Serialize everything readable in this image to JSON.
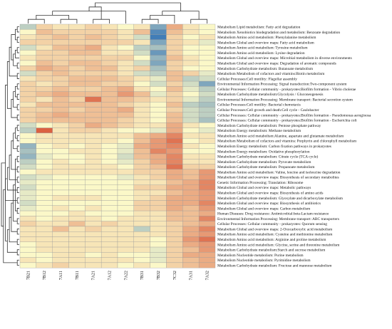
{
  "chart_data": {
    "type": "heatmap",
    "title": "",
    "xlabel": "",
    "ylabel": "",
    "legend": "none",
    "colors": {
      "low": "#2c6fb5",
      "mid": "#fbf8c8",
      "high": "#d33a1f"
    },
    "columns": [
      "7B21",
      "7B12",
      "7A11",
      "7B11",
      "7A21",
      "7A12",
      "7A22",
      "7B31",
      "7B32",
      "7C32",
      "7A31",
      "7A32"
    ],
    "rows": [
      "Metabolism Lipid metabolism: Fatty acid degradation",
      "Metabolism Xenobiotics biodegradation and metabolism: Benzoate degradation",
      "Metabolism Amino acid metabolism: Phenylalanine metabolism",
      "Metabolism Global and overview maps: Fatty acid metabolism",
      "Metabolism Amino acid metabolism: Tyrosine metabolism",
      "Metabolism Amino acid metabolism: Lysine degradation",
      "Metabolism Global and overview maps: Microbial metabolism in diverse environments",
      "Metabolism Global and overview maps: Degradation of aromatic compounds",
      "Metabolism Carbohydrate metabolism: Butanoate metabolism",
      "Metabolism Metabolism of cofactors and vitamins:Biotin metabolism",
      "Cellular Processes:Cell motility: Flagellar assembly",
      "Environmental Information Processing: Signal transduction:Two-component system",
      "Cellular Processes: Cellular community - prokaryotes:Biofilm formation - Vibrio cholerae",
      "Metabolism Carbohydrate metabolism:Glycolysis / Gluconeogenesis",
      "Environmental Information Processing: Membrane transport: Bacterial secretion system",
      "Cellular Processes:Cell motility: Bacterial chemotaxis",
      "Cellular Processes:Cell growth and death:Cell cycle - Caulobacter",
      "Cellular Processes: Cellular community - prokaryotes:Biofilm formation - Pseudomonas aeruginosa",
      "Cellular Processes: Cellular community - prokaryotes:Biofilm formation - Escherichia coli",
      "Metabolism Carbohydrate metabolism: Pentose phosphate pathway",
      "Metabolism Energy metabolism: Methane metabolism",
      "Metabolism Amino acid metabolism:Alanine, aspartate and glutamate metabolism",
      "Metabolism Metabolism of cofactors and vitamins: Porphyrin and chlorophyll metabolism",
      "Metabolism Energy metabolism: Carbon fixation pathways in prokaryotes",
      "Metabolism Energy metabolism: Oxidative phosphorylation",
      "Metabolism Carbohydrate metabolism: Citrate cycle (TCA cycle)",
      "Metabolism Carbohydrate metabolism: Pyruvate metabolism",
      "Metabolism Carbohydrate metabolism: Propanoate metabolism",
      "Metabolism Amino acid metabolism: Valine, leucine and isoleucine degradation",
      "Metabolism Global and overview maps: Biosynthesis of secondary metabolites",
      "Genetic Information Processing: Translation: Ribosome",
      "Metabolism Global and overview maps: Metabolic pathways",
      "Metabolism Global and overview maps: Biosynthesis of amino acids",
      "Metabolism Carbohydrate metabolism: Glyoxylate and dicarboxylate metabolism",
      "Metabolism Global and overview maps: Biosynthesis of antibiotics",
      "Metabolism Global and overview maps: Carbon metabolism",
      "Human Diseases: Drug resistance: Antimicrobial:beta-Lactam resistance",
      "Environmental Information Processing: Membrane transport: ABC transporters",
      "Cellular Processes: Cellular community - prokaryotes: Quorum sensing",
      "Metabolism Global and overview maps: 2-Oxocarboxylic acid metabolism",
      "Metabolism Amino acid metabolism: Cysteine and methionine metabolism",
      "Metabolism Amino acid metabolism: Arginine and proline metabolism",
      "Metabolism Amino acid metabolism: Glycine, serine and threonine metabolism",
      "Metabolism Carbohydrate metabolism:Starch and sucrose metabolism",
      "Metabolism Nucleotide metabolism: Purine metabolism",
      "Metabolism Nucleotide metabolism: Pyrimidine metabolism",
      "Metabolism Carbohydrate metabolism: Fructose and mannose metabolism"
    ],
    "values": [
      [
        -0.3,
        0.2,
        0.1,
        0.1,
        0.2,
        0.1,
        0.0,
        0.1,
        -0.6,
        0.4,
        0.1,
        0.0
      ],
      [
        0.0,
        0.3,
        0.2,
        0.2,
        0.2,
        0.2,
        0.1,
        0.3,
        -0.8,
        0.3,
        0.1,
        0.0
      ],
      [
        0.1,
        0.2,
        0.3,
        0.2,
        0.3,
        0.2,
        0.1,
        -0.2,
        -0.9,
        0.2,
        0.0,
        0.1
      ],
      [
        0.2,
        0.2,
        0.2,
        0.2,
        0.2,
        0.2,
        0.2,
        0.1,
        -0.6,
        0.2,
        0.1,
        -0.1
      ],
      [
        -0.2,
        0.1,
        0.3,
        0.3,
        0.4,
        0.1,
        0.0,
        -0.3,
        -0.4,
        0.2,
        0.0,
        0.0
      ],
      [
        0.0,
        0.2,
        0.2,
        0.3,
        0.3,
        0.1,
        0.1,
        -0.2,
        -0.7,
        0.2,
        0.0,
        0.0
      ],
      [
        0.1,
        0.2,
        0.2,
        0.2,
        0.2,
        0.2,
        0.2,
        0.0,
        -0.5,
        0.3,
        0.1,
        0.0
      ],
      [
        0.0,
        0.3,
        0.2,
        0.3,
        0.3,
        0.2,
        0.1,
        -0.2,
        -0.6,
        0.2,
        0.1,
        0.0
      ],
      [
        0.2,
        0.4,
        0.3,
        0.2,
        0.3,
        0.3,
        0.1,
        0.2,
        -0.4,
        0.2,
        0.0,
        0.0
      ],
      [
        -0.2,
        0.2,
        0.3,
        0.2,
        0.2,
        0.2,
        0.1,
        -0.2,
        -0.3,
        0.3,
        0.2,
        -0.1
      ],
      [
        0.1,
        0.2,
        0.2,
        0.3,
        0.3,
        0.3,
        0.2,
        0.1,
        -0.1,
        0.3,
        -0.3,
        -0.2
      ],
      [
        0.2,
        0.1,
        0.2,
        0.3,
        0.3,
        0.2,
        0.2,
        0.0,
        -0.2,
        0.2,
        -0.2,
        -0.6
      ],
      [
        0.2,
        0.2,
        0.3,
        0.2,
        0.2,
        0.3,
        0.4,
        0.1,
        0.0,
        0.3,
        -0.1,
        -0.3
      ],
      [
        0.2,
        0.3,
        0.4,
        0.3,
        0.3,
        0.3,
        0.5,
        0.3,
        -0.1,
        0.2,
        0.0,
        -0.2
      ],
      [
        0.2,
        0.1,
        0.3,
        0.2,
        0.7,
        0.3,
        0.3,
        0.2,
        0.1,
        0.2,
        -0.1,
        -0.3
      ],
      [
        0.1,
        0.3,
        0.3,
        0.3,
        0.3,
        0.3,
        0.2,
        0.1,
        0.0,
        0.3,
        -0.3,
        -0.4
      ],
      [
        0.2,
        0.2,
        0.3,
        0.2,
        0.3,
        0.3,
        0.4,
        0.1,
        0.0,
        0.2,
        -0.2,
        -0.3
      ],
      [
        0.2,
        0.3,
        0.4,
        0.3,
        0.3,
        0.3,
        0.3,
        0.1,
        0.0,
        0.3,
        -0.2,
        -0.3
      ],
      [
        0.2,
        0.3,
        0.3,
        0.3,
        0.3,
        0.3,
        0.2,
        0.1,
        0.0,
        0.3,
        -0.2,
        -0.4
      ],
      [
        -0.2,
        0.0,
        0.1,
        0.2,
        0.4,
        0.3,
        0.2,
        0.1,
        0.1,
        0.4,
        0.1,
        0.0
      ],
      [
        -0.3,
        0.8,
        0.1,
        0.2,
        0.2,
        0.1,
        0.0,
        0.0,
        -0.1,
        0.4,
        0.0,
        -0.1
      ],
      [
        0.0,
        0.1,
        0.1,
        0.1,
        0.1,
        0.1,
        0.1,
        0.3,
        0.4,
        0.6,
        0.1,
        0.1
      ],
      [
        0.0,
        0.1,
        0.1,
        0.1,
        0.1,
        0.1,
        0.0,
        0.3,
        0.5,
        0.7,
        0.0,
        0.1
      ],
      [
        -0.5,
        0.0,
        0.1,
        0.0,
        0.1,
        0.0,
        -0.1,
        0.4,
        0.5,
        0.6,
        0.1,
        0.0
      ],
      [
        -0.4,
        0.0,
        0.0,
        0.1,
        0.1,
        0.0,
        -0.1,
        0.3,
        0.6,
        0.5,
        0.0,
        0.0
      ],
      [
        -0.5,
        -0.1,
        0.0,
        0.0,
        0.1,
        0.0,
        -0.2,
        0.3,
        0.4,
        0.6,
        0.1,
        0.1
      ],
      [
        -0.3,
        0.0,
        0.1,
        0.0,
        0.1,
        0.0,
        -0.1,
        0.2,
        0.4,
        0.6,
        0.1,
        0.1
      ],
      [
        -0.2,
        0.0,
        0.1,
        0.1,
        0.1,
        0.1,
        0.0,
        0.2,
        0.3,
        0.7,
        0.2,
        0.2
      ],
      [
        0.0,
        0.1,
        0.1,
        0.1,
        0.1,
        0.1,
        0.1,
        0.2,
        0.2,
        0.4,
        0.3,
        0.5
      ],
      [
        -0.2,
        -0.1,
        0.0,
        0.0,
        0.0,
        0.0,
        -0.1,
        0.1,
        0.2,
        0.4,
        0.3,
        0.5
      ],
      [
        -0.1,
        0.0,
        0.0,
        0.0,
        0.0,
        0.0,
        0.0,
        0.1,
        0.1,
        0.3,
        0.4,
        0.6
      ],
      [
        -0.2,
        0.0,
        0.0,
        0.0,
        0.0,
        0.0,
        0.0,
        0.2,
        0.2,
        0.4,
        0.4,
        0.6
      ],
      [
        -0.1,
        0.0,
        0.0,
        0.0,
        0.0,
        0.0,
        0.0,
        0.1,
        0.1,
        0.3,
        0.4,
        0.5
      ],
      [
        -0.1,
        0.0,
        0.1,
        0.1,
        0.1,
        0.0,
        0.0,
        0.1,
        0.2,
        0.4,
        0.4,
        0.5
      ],
      [
        -0.2,
        0.0,
        0.0,
        0.0,
        0.0,
        0.0,
        0.0,
        0.2,
        0.2,
        0.4,
        0.4,
        0.6
      ],
      [
        -0.1,
        0.0,
        0.1,
        0.0,
        0.1,
        0.0,
        0.0,
        0.2,
        0.2,
        0.4,
        0.3,
        0.5
      ],
      [
        0.0,
        0.0,
        0.0,
        0.1,
        0.0,
        0.0,
        0.0,
        0.1,
        0.1,
        0.3,
        0.3,
        0.4
      ],
      [
        0.1,
        0.0,
        0.1,
        0.1,
        0.1,
        0.0,
        0.1,
        0.1,
        0.1,
        0.3,
        0.3,
        0.6
      ],
      [
        0.2,
        0.1,
        0.1,
        0.3,
        0.1,
        0.2,
        0.1,
        0.1,
        0.1,
        0.2,
        0.3,
        0.4
      ],
      [
        0.1,
        0.1,
        0.3,
        0.1,
        0.2,
        0.1,
        0.1,
        -0.3,
        0.1,
        0.2,
        0.4,
        0.6
      ],
      [
        0.1,
        0.1,
        0.1,
        0.1,
        0.1,
        0.1,
        0.1,
        0.1,
        0.1,
        0.2,
        0.4,
        0.5
      ],
      [
        0.1,
        0.1,
        0.1,
        0.1,
        0.1,
        0.1,
        0.1,
        0.1,
        0.0,
        0.2,
        0.5,
        0.7
      ],
      [
        0.0,
        0.1,
        0.1,
        0.1,
        0.1,
        0.1,
        0.1,
        0.1,
        0.0,
        0.2,
        0.4,
        0.5
      ],
      [
        0.0,
        0.1,
        0.1,
        0.1,
        0.1,
        0.1,
        0.1,
        0.1,
        -0.1,
        0.2,
        0.3,
        0.5
      ],
      [
        0.0,
        0.0,
        0.1,
        0.1,
        0.0,
        0.1,
        0.0,
        0.0,
        -0.1,
        0.2,
        0.4,
        0.4
      ],
      [
        0.1,
        0.0,
        0.1,
        0.1,
        0.1,
        0.1,
        0.1,
        0.0,
        -0.1,
        0.2,
        0.3,
        0.4
      ],
      [
        0.0,
        0.1,
        0.2,
        0.1,
        0.1,
        0.1,
        0.0,
        0.1,
        0.0,
        0.2,
        0.3,
        0.4
      ]
    ],
    "column_dendrogram": [
      [
        0,
        1
      ],
      [
        2,
        3
      ],
      [
        12,
        13
      ],
      [
        4,
        5
      ],
      [
        14,
        6
      ],
      [
        15,
        16
      ],
      [
        7,
        8
      ],
      [
        18,
        9
      ],
      [
        10,
        11
      ],
      [
        19,
        20
      ],
      [
        17,
        21
      ]
    ],
    "row_dendrogram": [
      [
        0,
        1
      ],
      [
        2,
        3
      ],
      [
        47,
        48
      ],
      [
        4,
        5
      ],
      [
        50,
        6
      ],
      [
        7,
        8
      ],
      [
        51,
        52
      ],
      [
        49,
        53
      ],
      [
        9,
        10
      ],
      [
        54,
        55
      ],
      [
        11,
        12
      ],
      [
        13,
        14
      ],
      [
        57,
        58
      ],
      [
        15,
        16
      ],
      [
        59,
        60
      ],
      [
        17,
        18
      ],
      [
        61,
        62
      ],
      [
        56,
        63
      ],
      [
        19,
        20
      ],
      [
        21,
        22
      ],
      [
        23,
        24
      ],
      [
        65,
        66
      ],
      [
        25,
        26
      ],
      [
        67,
        68
      ],
      [
        27,
        28
      ],
      [
        29,
        30
      ],
      [
        70,
        71
      ],
      [
        31,
        32
      ],
      [
        72,
        73
      ],
      [
        33,
        34
      ],
      [
        74,
        75
      ],
      [
        35,
        36
      ],
      [
        76,
        77
      ],
      [
        69,
        78
      ],
      [
        37,
        38
      ],
      [
        39,
        40
      ],
      [
        80,
        81
      ],
      [
        41,
        42
      ],
      [
        82,
        83
      ],
      [
        43,
        44
      ],
      [
        84,
        85
      ],
      [
        45,
        46
      ],
      [
        86,
        87
      ],
      [
        79,
        88
      ],
      [
        64,
        89
      ],
      [
        90,
        91
      ]
    ]
  }
}
